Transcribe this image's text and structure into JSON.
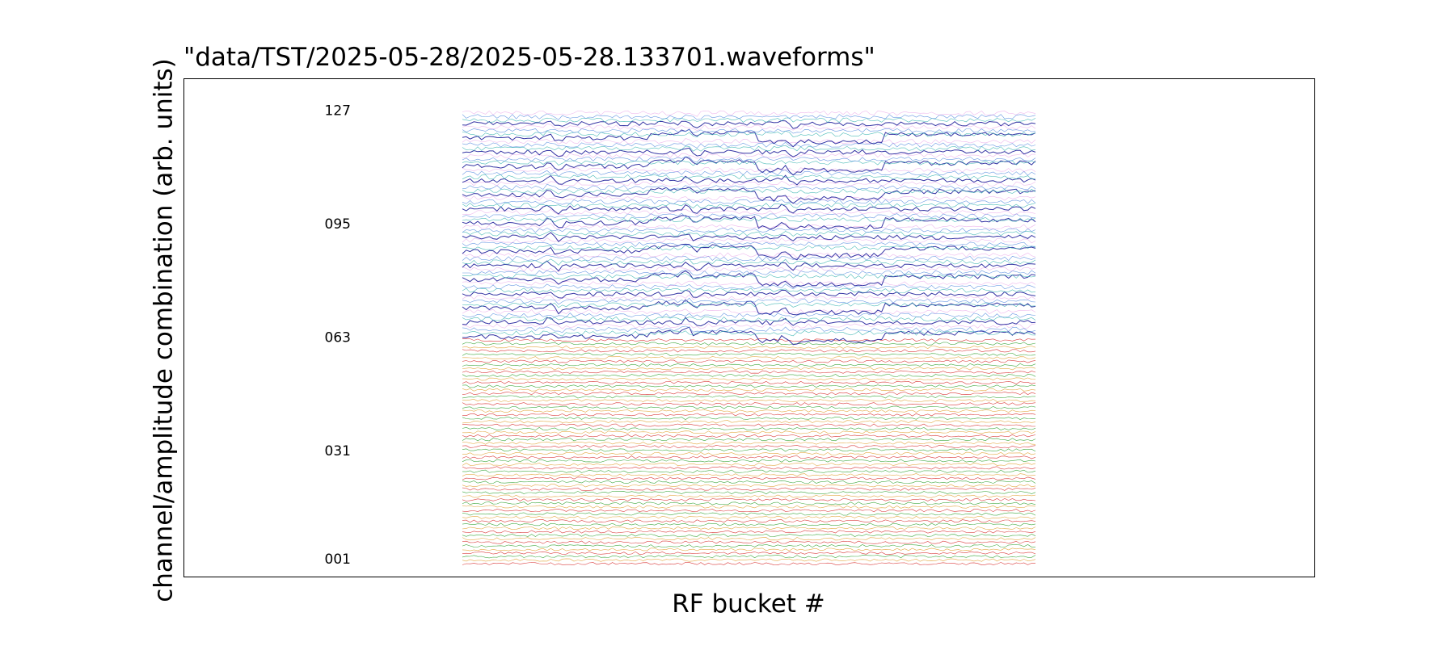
{
  "chart_data": {
    "type": "line",
    "title": "\"data/TST/2025-05-28/2025-05-28.133701.waveforms\"",
    "xlabel": "RF bucket #",
    "ylabel": "channel/amplitude combination (arb. units)",
    "grid": false,
    "legend": "none",
    "trace_count": 128,
    "tick_labels": [
      "127",
      "095",
      "063",
      "031",
      "001"
    ],
    "tick_channels": [
      127,
      95,
      63,
      31,
      1
    ],
    "lower_palette": [
      "#d62728",
      "#e0a030",
      "#2ca02c"
    ],
    "upper_palette": [
      "#1f1f9a",
      "#3ab5b0",
      "#5a8fe0",
      "#e080e0"
    ]
  }
}
